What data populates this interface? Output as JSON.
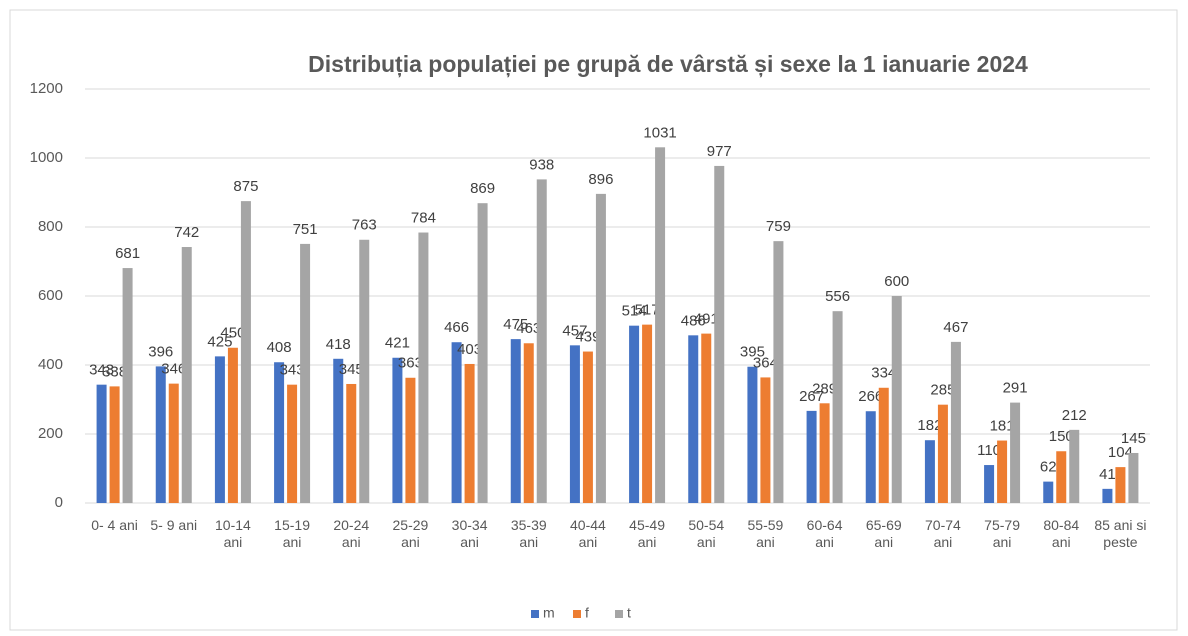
{
  "chart_data": {
    "type": "bar",
    "title": "Distribuția populației pe grupă de vârstă și sexe la 1 ianuarie 2024",
    "categories": [
      "0- 4 ani",
      "5- 9 ani",
      "10-14 ani",
      "15-19 ani",
      "20-24 ani",
      "25-29 ani",
      "30-34 ani",
      "35-39 ani",
      "40-44 ani",
      "45-49 ani",
      "50-54 ani",
      "55-59 ani",
      "60-64 ani",
      "65-69 ani",
      "70-74 ani",
      "75-79 ani",
      "80-84 ani",
      "85 ani si peste"
    ],
    "series": [
      {
        "name": "m",
        "color": "#4472c4",
        "values": [
          343,
          396,
          425,
          408,
          418,
          421,
          466,
          475,
          457,
          514,
          486,
          395,
          267,
          266,
          182,
          110,
          62,
          41
        ]
      },
      {
        "name": "f",
        "color": "#ed7d31",
        "values": [
          338,
          346,
          450,
          343,
          345,
          363,
          403,
          463,
          439,
          517,
          491,
          364,
          289,
          334,
          285,
          181,
          150,
          104
        ]
      },
      {
        "name": "t",
        "color": "#a5a5a5",
        "values": [
          681,
          742,
          875,
          751,
          763,
          784,
          869,
          938,
          896,
          1031,
          977,
          759,
          556,
          600,
          467,
          291,
          212,
          145
        ]
      }
    ],
    "ylim": [
      0,
      1200
    ],
    "yticks": [
      0,
      200,
      400,
      600,
      800,
      1000,
      1200
    ],
    "grid": true,
    "legend": "bottom"
  }
}
